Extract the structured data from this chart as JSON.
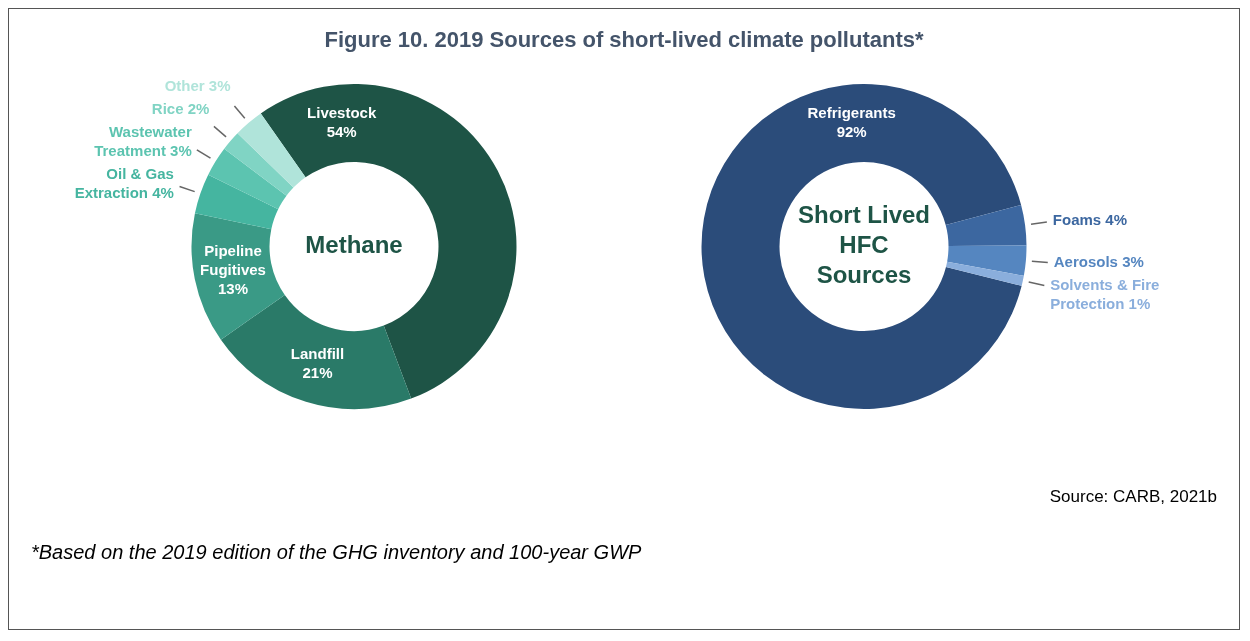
{
  "chart_data": [
    {
      "type": "donut",
      "title": "Figure 10. 2019 Sources of short-lived climate pollutants*",
      "subtitle": "Methane",
      "categories": [
        "Livestock",
        "Landfill",
        "Pipeline Fugitives",
        "Oil & Gas Extraction",
        "Wastewater Treatment",
        "Rice",
        "Other"
      ],
      "values": [
        54,
        21,
        13,
        4,
        3,
        2,
        3
      ],
      "value_labels": [
        "54%",
        "21%",
        "13%",
        "4%",
        "3%",
        "2%",
        "3%"
      ],
      "colors": [
        "#1e5446",
        "#2a7a68",
        "#3a9a86",
        "#45b5a0",
        "#5cc4b0",
        "#80d4c4",
        "#b0e4da"
      ],
      "annotations": [
        "Source: CARB, 2021b",
        "*Based on the 2019 edition of the GHG inventory and 100-year GWP"
      ]
    },
    {
      "type": "donut",
      "subtitle": "Short Lived HFC Sources",
      "categories": [
        "Refrigerants",
        "Foams",
        "Aerosols",
        "Solvents & Fire Protection"
      ],
      "values": [
        92,
        4,
        3,
        1
      ],
      "value_labels": [
        "92%",
        "4%",
        "3%",
        "1%"
      ],
      "colors": [
        "#2b4c7a",
        "#3c67a0",
        "#5586c0",
        "#8aaedc"
      ]
    }
  ]
}
